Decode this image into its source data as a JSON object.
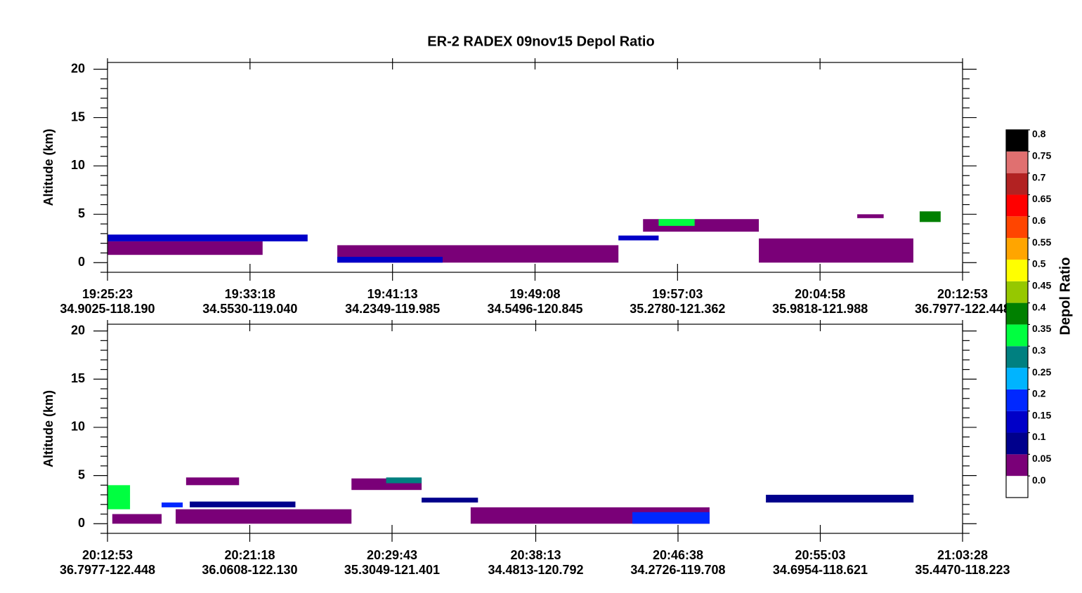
{
  "chart_data": [
    {
      "type": "curtain",
      "title": "ER-2 RADEX 09nov15 Depol Ratio",
      "ylabel": "Altitude (km)",
      "ylim": [
        -1,
        20.7
      ],
      "yticks": [
        0,
        5,
        10,
        15,
        20
      ],
      "xlim": [
        "19:25:23",
        "20:12:53"
      ],
      "xticks": [
        "19:25:23",
        "19:33:18",
        "19:41:13",
        "19:49:08",
        "19:57:03",
        "20:04:58",
        "20:12:53"
      ],
      "xtick_locations": [
        "34.9025-118.190",
        "34.5530-119.040",
        "34.2349-119.985",
        "34.5496-120.845",
        "35.2780-121.362",
        "35.9818-121.988",
        "36.7977-122.448"
      ],
      "layers": [
        {
          "start": "19:25:23",
          "end": "19:34:00",
          "base": 0.8,
          "top": 2.2,
          "depol": 0.0
        },
        {
          "start": "19:25:23",
          "end": "19:36:30",
          "base": 2.2,
          "top": 2.9,
          "depol": 0.1
        },
        {
          "start": "19:38:09",
          "end": "19:53:46",
          "base": 0,
          "top": 1.8,
          "depol": 0.0
        },
        {
          "start": "19:38:09",
          "end": "19:44:00",
          "base": 0,
          "top": 0.6,
          "depol": 0.1
        },
        {
          "start": "19:53:46",
          "end": "19:56:00",
          "base": 2.3,
          "top": 2.8,
          "depol": 0.1
        },
        {
          "start": "19:55:08",
          "end": "20:01:34",
          "base": 3.2,
          "top": 4.5,
          "depol": 0.0
        },
        {
          "start": "19:56:00",
          "end": "19:58:00",
          "base": 3.8,
          "top": 4.5,
          "depol": 0.3
        },
        {
          "start": "20:01:34",
          "end": "20:10:09",
          "base": 0,
          "top": 2.5,
          "depol": 0.0
        },
        {
          "start": "20:07:02",
          "end": "20:08:30",
          "base": 4.6,
          "top": 5.0,
          "depol": 0.0
        },
        {
          "start": "20:10:30",
          "end": "20:11:40",
          "base": 4.2,
          "top": 5.3,
          "depol": 0.35
        }
      ]
    },
    {
      "type": "curtain",
      "ylabel": "Altitude (km)",
      "ylim": [
        -1,
        20.7
      ],
      "yticks": [
        0,
        5,
        10,
        15,
        20
      ],
      "xlim": [
        "20:12:53",
        "21:03:28"
      ],
      "xticks": [
        "20:12:53",
        "20:21:18",
        "20:29:43",
        "20:38:13",
        "20:46:38",
        "20:55:03",
        "21:03:28"
      ],
      "xtick_locations": [
        "36.7977-122.448",
        "36.0608-122.130",
        "35.3049-121.401",
        "34.4813-120.792",
        "34.2726-119.708",
        "34.6954-118.621",
        "35.4470-118.223"
      ],
      "layers": [
        {
          "start": "20:13:10",
          "end": "20:16:05",
          "base": 0,
          "top": 1.0,
          "depol": 0.0
        },
        {
          "start": "20:12:53",
          "end": "20:14:13",
          "base": 1.5,
          "top": 4.0,
          "depol": 0.3
        },
        {
          "start": "20:16:05",
          "end": "20:17:20",
          "base": 1.7,
          "top": 2.2,
          "depol": 0.15
        },
        {
          "start": "20:16:55",
          "end": "20:27:19",
          "base": 0,
          "top": 1.5,
          "depol": 0.0
        },
        {
          "start": "20:17:45",
          "end": "20:24:00",
          "base": 1.7,
          "top": 2.3,
          "depol": 0.05
        },
        {
          "start": "20:17:32",
          "end": "20:20:40",
          "base": 4.0,
          "top": 4.8,
          "depol": 0.0
        },
        {
          "start": "20:27:19",
          "end": "20:31:28",
          "base": 3.5,
          "top": 4.7,
          "depol": 0.0
        },
        {
          "start": "20:29:22",
          "end": "20:31:28",
          "base": 4.2,
          "top": 4.8,
          "depol": 0.25
        },
        {
          "start": "20:31:28",
          "end": "20:34:48",
          "base": 2.2,
          "top": 2.7,
          "depol": 0.05
        },
        {
          "start": "20:34:22",
          "end": "20:48:30",
          "base": 0,
          "top": 1.7,
          "depol": 0.0
        },
        {
          "start": "20:43:56",
          "end": "20:48:30",
          "base": 0,
          "top": 1.2,
          "depol": 0.15
        },
        {
          "start": "20:51:50",
          "end": "21:00:34",
          "base": 2.2,
          "top": 3.0,
          "depol": 0.05
        }
      ]
    },
    {
      "type": "colorbar",
      "label": "Depol Ratio",
      "ticks": [
        {
          "value": 0,
          "label": "0.0"
        },
        0.05,
        0.1,
        0.15,
        0.2,
        0.25,
        0.3,
        0.35,
        0.4,
        0.45,
        0.5,
        0.55,
        0.6,
        0.65,
        0.7,
        0.75,
        0.8
      ],
      "colors": [
        "#ffffff",
        "#7a0078",
        "#00008c",
        "#0000c8",
        "#0028ff",
        "#00b4ff",
        "#008080",
        "#00ff40",
        "#008000",
        "#96c800",
        "#ffff00",
        "#ffa500",
        "#ff4500",
        "#ff0000",
        "#b22222",
        "#e07070",
        "#000000"
      ]
    }
  ]
}
